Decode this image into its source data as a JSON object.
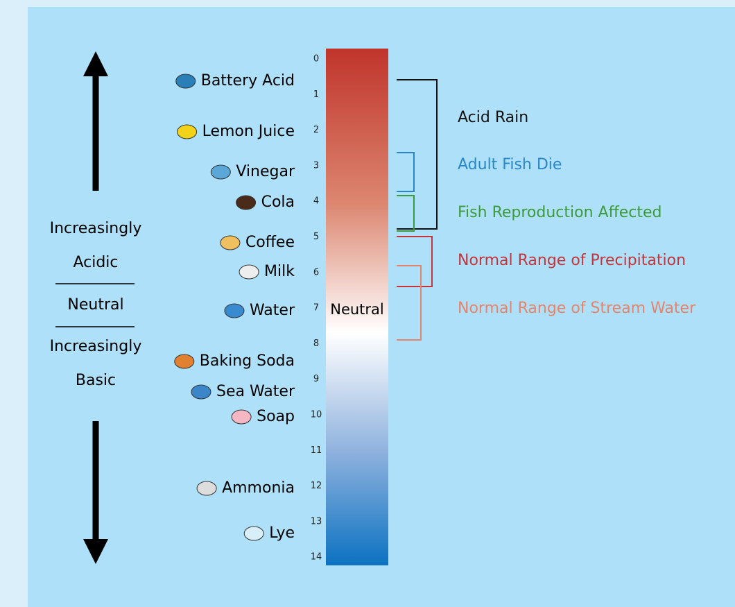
{
  "side_labels": [
    "Increasingly",
    "Acidic",
    "Neutral",
    "Increasingly",
    "Basic"
  ],
  "scale": {
    "ticks": [
      0,
      1,
      2,
      3,
      4,
      5,
      6,
      7,
      8,
      9,
      10,
      11,
      12,
      13,
      14
    ],
    "center_label": "Neutral"
  },
  "substances": [
    {
      "label": "Battery Acid"
    },
    {
      "label": "Lemon Juice"
    },
    {
      "label": "Vinegar"
    },
    {
      "label": "Cola"
    },
    {
      "label": "Coffee"
    },
    {
      "label": "Milk"
    },
    {
      "label": "Water"
    },
    {
      "label": "Baking Soda"
    },
    {
      "label": "Sea Water"
    },
    {
      "label": "Soap"
    },
    {
      "label": "Ammonia"
    },
    {
      "label": "Lye"
    }
  ],
  "ranges": [
    {
      "label": "Acid Rain",
      "color": "#111111"
    },
    {
      "label": "Adult Fish Die",
      "color": "#2a86c8"
    },
    {
      "label": "Fish Reproduction Affected",
      "color": "#3c9a3c"
    },
    {
      "label": "Normal Range of Precipitation",
      "color": "#c0363c"
    },
    {
      "label": "Normal Range of Stream Water",
      "color": "#e5846c"
    }
  ]
}
